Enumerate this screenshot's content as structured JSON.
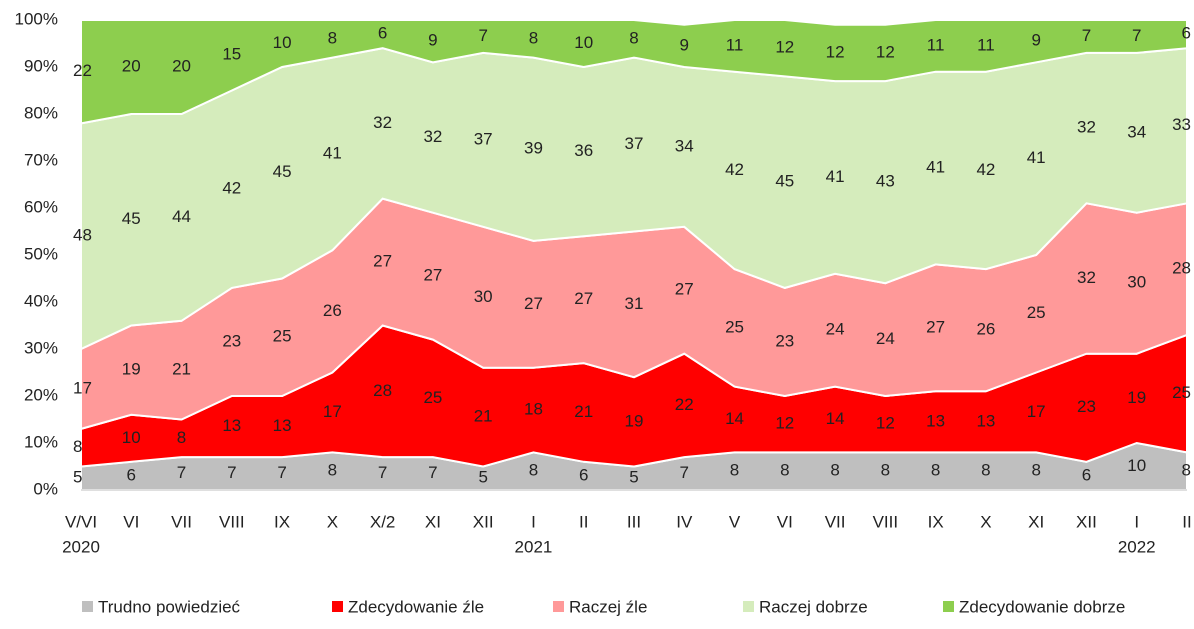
{
  "chart_data": {
    "type": "stacked_area",
    "categories": [
      "V/VI",
      "VI",
      "VII",
      "VIII",
      "IX",
      "X",
      "X/2",
      "XI",
      "XII",
      "I",
      "II",
      "III",
      "IV",
      "V",
      "VI",
      "VII",
      "VIII",
      "IX",
      "X",
      "XI",
      "XII",
      "I",
      "II"
    ],
    "year_labels": [
      {
        "index": 0,
        "label": "2020"
      },
      {
        "index": 9,
        "label": "2021"
      },
      {
        "index": 21,
        "label": "2022"
      }
    ],
    "series": [
      {
        "name": "Trudno powiedzieć",
        "color": "#bfbfbf",
        "values": [
          5,
          6,
          7,
          7,
          7,
          8,
          7,
          7,
          5,
          8,
          6,
          5,
          7,
          8,
          8,
          8,
          8,
          8,
          8,
          8,
          6,
          10,
          8
        ]
      },
      {
        "name": "Zdecydowanie źle",
        "color": "#ff0000",
        "values": [
          8,
          10,
          8,
          13,
          13,
          17,
          28,
          25,
          21,
          18,
          21,
          19,
          22,
          14,
          12,
          14,
          12,
          13,
          13,
          17,
          23,
          19,
          25
        ]
      },
      {
        "name": "Raczej źle",
        "color": "#ff9999",
        "values": [
          17,
          19,
          21,
          23,
          25,
          26,
          27,
          27,
          30,
          27,
          27,
          31,
          27,
          25,
          23,
          24,
          24,
          27,
          26,
          25,
          32,
          30,
          28
        ]
      },
      {
        "name": "Raczej dobrze",
        "color": "#d5ecbc",
        "values": [
          48,
          45,
          44,
          42,
          45,
          41,
          32,
          32,
          37,
          39,
          36,
          37,
          34,
          42,
          45,
          41,
          43,
          41,
          42,
          41,
          32,
          34,
          33
        ]
      },
      {
        "name": "Zdecydowanie dobrze",
        "color": "#8dce4e",
        "values": [
          22,
          20,
          20,
          15,
          10,
          8,
          6,
          9,
          7,
          8,
          10,
          8,
          9,
          11,
          12,
          12,
          12,
          11,
          11,
          9,
          7,
          7,
          6
        ]
      }
    ],
    "ylim": [
      0,
      100
    ],
    "yticks": [
      {
        "value": 0,
        "label": "0%"
      },
      {
        "value": 10,
        "label": "10%"
      },
      {
        "value": 20,
        "label": "20%"
      },
      {
        "value": 30,
        "label": "30%"
      },
      {
        "value": 40,
        "label": "40%"
      },
      {
        "value": 50,
        "label": "50%"
      },
      {
        "value": 60,
        "label": "60%"
      },
      {
        "value": 70,
        "label": "70%"
      },
      {
        "value": 80,
        "label": "80%"
      },
      {
        "value": 90,
        "label": "90%"
      },
      {
        "value": 100,
        "label": "100%"
      }
    ],
    "legend": "bottom"
  }
}
